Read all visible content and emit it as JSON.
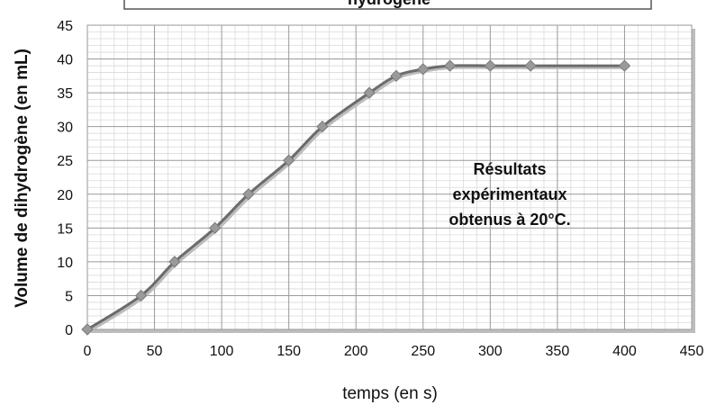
{
  "chart_data": {
    "type": "line",
    "title": "",
    "title_visible_fragment": "hydrogène",
    "xlabel": "temps (en s)",
    "ylabel": "Volume de dihydrogène (en mL)",
    "xlim": [
      0,
      450
    ],
    "ylim": [
      0,
      45
    ],
    "x_ticks": [
      0,
      50,
      100,
      150,
      200,
      250,
      300,
      350,
      400,
      450
    ],
    "y_ticks": [
      0,
      5,
      10,
      15,
      20,
      25,
      30,
      35,
      40,
      45
    ],
    "grid": true,
    "annotation": [
      "Résultats",
      "expérimentaux",
      "obtenus à 20°C."
    ],
    "series": [
      {
        "x": [
          0,
          40,
          65,
          95,
          120,
          150,
          175,
          210,
          230,
          250,
          270,
          300,
          330,
          400
        ],
        "y": [
          0,
          5,
          10,
          15,
          20,
          25,
          30,
          35,
          37.5,
          38.5,
          39,
          39,
          39,
          39
        ],
        "color": "#6b6b6b",
        "marker": "diamond",
        "marker_color": "#9a9a9a"
      }
    ]
  }
}
